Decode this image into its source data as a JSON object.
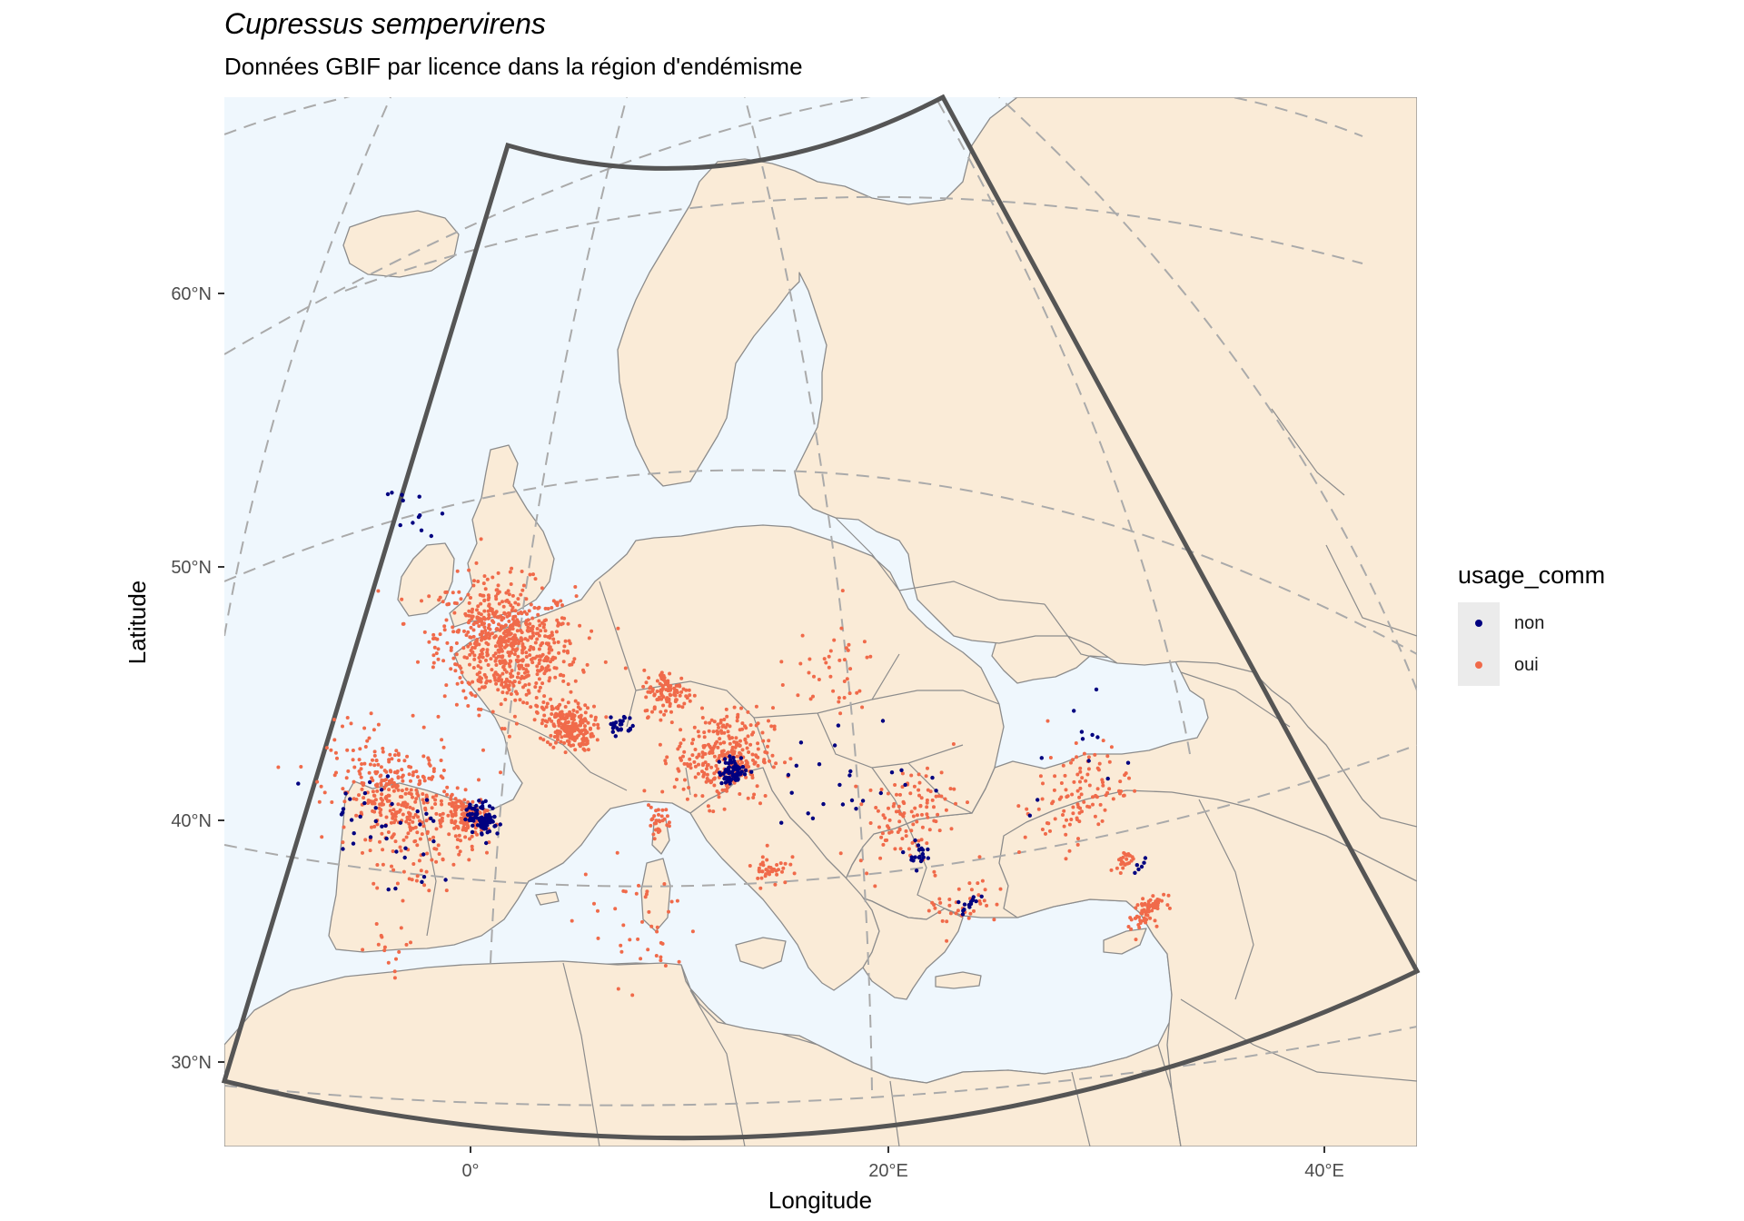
{
  "title": "Cupressus sempervirens",
  "subtitle": "Données GBIF par licence dans la région d'endémisme",
  "colors": {
    "land": "#FAEBD7",
    "sea": "#EFF7FD",
    "border": "#8c8c8c",
    "region_outline": "#555555",
    "graticule": "#aaaaaa",
    "non": "#000080",
    "oui": "#F06A4A"
  },
  "chart_data": {
    "type": "scatter",
    "title": "Cupressus sempervirens",
    "subtitle": "Données GBIF par licence dans la région d'endémisme",
    "xlabel": "Longitude",
    "ylabel": "Latitude",
    "x_ticks": [
      "0°",
      "20°E",
      "40°E"
    ],
    "y_ticks": [
      "30°N",
      "40°N",
      "50°N",
      "60°N"
    ],
    "legend": {
      "title": "usage_comm",
      "placement": "right",
      "entries": [
        {
          "label": "non",
          "color": "#000080"
        },
        {
          "label": "oui",
          "color": "#F06A4A"
        }
      ]
    },
    "series": [
      {
        "name": "non",
        "clusters": [
          {
            "lon": 0.5,
            "lat": 39.5,
            "spread": 0.7,
            "count": 90
          },
          {
            "lon": 12.5,
            "lat": 41.9,
            "spread": 0.6,
            "count": 70
          },
          {
            "lon": 7.3,
            "lat": 43.7,
            "spread": 0.5,
            "count": 25
          },
          {
            "lon": 21.7,
            "lat": 37.8,
            "spread": 0.5,
            "count": 20
          },
          {
            "lon": 25.0,
            "lat": 35.3,
            "spread": 0.4,
            "count": 14
          },
          {
            "lon": -1.3,
            "lat": 51.5,
            "spread": 1.2,
            "count": 12
          },
          {
            "lon": -4.5,
            "lat": 38.5,
            "spread": 3.0,
            "count": 40
          },
          {
            "lon": 18.0,
            "lat": 41.0,
            "spread": 3.0,
            "count": 25
          },
          {
            "lon": 29.5,
            "lat": 40.0,
            "spread": 3.0,
            "count": 12
          },
          {
            "lon": 34.0,
            "lat": 34.5,
            "spread": 0.5,
            "count": 6
          }
        ]
      },
      {
        "name": "oui",
        "clusters": [
          {
            "lon": 2.5,
            "lat": 46.5,
            "spread": 2.8,
            "count": 700
          },
          {
            "lon": 5.0,
            "lat": 43.5,
            "spread": 1.0,
            "count": 220
          },
          {
            "lon": -3.5,
            "lat": 39.5,
            "spread": 2.8,
            "count": 380
          },
          {
            "lon": -0.3,
            "lat": 39.5,
            "spread": 0.9,
            "count": 130
          },
          {
            "lon": 12.0,
            "lat": 42.5,
            "spread": 2.0,
            "count": 300
          },
          {
            "lon": 9.5,
            "lat": 45.0,
            "spread": 1.0,
            "count": 110
          },
          {
            "lon": 14.5,
            "lat": 38.0,
            "spread": 0.8,
            "count": 40
          },
          {
            "lon": 9.0,
            "lat": 40.0,
            "spread": 0.6,
            "count": 30
          },
          {
            "lon": 21.0,
            "lat": 39.5,
            "spread": 2.0,
            "count": 110
          },
          {
            "lon": 29.5,
            "lat": 38.5,
            "spread": 2.2,
            "count": 110
          },
          {
            "lon": 35.3,
            "lat": 32.3,
            "spread": 0.8,
            "count": 70
          },
          {
            "lon": 33.0,
            "lat": 35.0,
            "spread": 0.5,
            "count": 25
          },
          {
            "lon": 8.0,
            "lat": 36.0,
            "spread": 2.8,
            "count": 40
          },
          {
            "lon": 16.5,
            "lat": 45.5,
            "spread": 2.0,
            "count": 40
          },
          {
            "lon": -5.5,
            "lat": 33.0,
            "spread": 1.6,
            "count": 15
          },
          {
            "lon": 24.5,
            "lat": 35.5,
            "spread": 1.5,
            "count": 40
          }
        ]
      }
    ]
  }
}
